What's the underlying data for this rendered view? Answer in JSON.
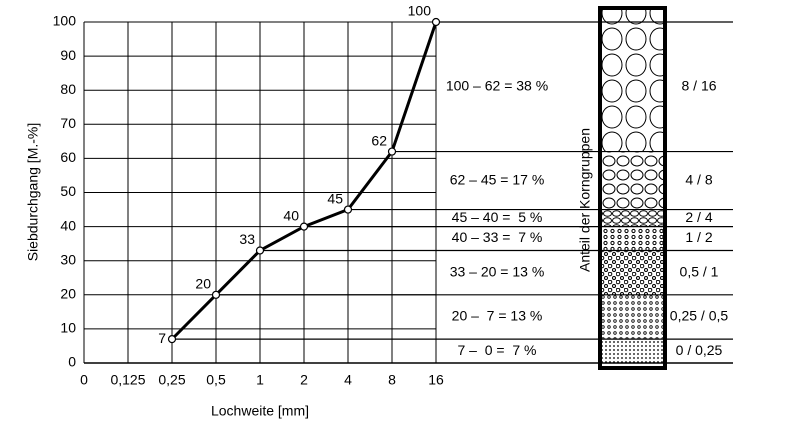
{
  "chart_data": {
    "type": "line",
    "ylabel": "Siebdurchgang [M.-%]",
    "xlabel": "Lochweite [mm]",
    "categories": [
      "0",
      "0,125",
      "0,25",
      "0,5",
      "1",
      "2",
      "4",
      "8",
      "16"
    ],
    "series": [
      {
        "color": "#000000",
        "values": [
          null,
          null,
          7,
          20,
          33,
          40,
          45,
          62,
          100
        ]
      }
    ],
    "ylim": [
      0,
      100
    ],
    "yticks": [
      0,
      10,
      20,
      30,
      40,
      50,
      60,
      70,
      80,
      90,
      100
    ],
    "grid": true,
    "annotations": [
      "100 – 62 = 38 %",
      "62 – 45 = 17 %",
      "45 – 40 =  5 %",
      "40 – 33 =  7 %",
      "33 – 20 = 13 %",
      "20 –  7 = 13 %",
      "7 –  0 =  7 %"
    ],
    "fractions": [
      "8 / 16",
      "4 / 8",
      "2 / 4",
      "1 / 2",
      "0,5 / 1",
      "0,25 / 0,5",
      "0 / 0,25"
    ],
    "column_label": "Anteil der Korngruppen"
  }
}
